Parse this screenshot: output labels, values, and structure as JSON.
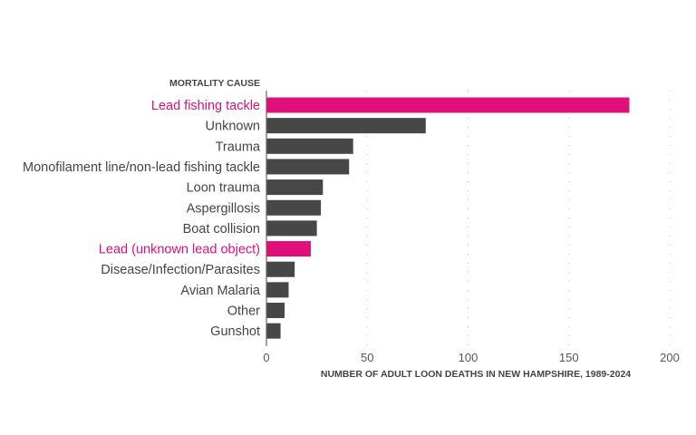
{
  "chart_data": {
    "type": "bar",
    "orientation": "horizontal",
    "ylabel": "MORTALITY CAUSE",
    "xlabel": "NUMBER OF ADULT LOON DEATHS IN NEW HAMPSHIRE, 1989-2024",
    "xlim": [
      0,
      200
    ],
    "xticks": [
      0,
      50,
      100,
      150,
      200
    ],
    "grid": "vertical dotted",
    "categories": [
      "Lead fishing tackle",
      "Unknown",
      "Trauma",
      "Monofilament line/non-lead fishing tackle",
      "Loon trauma",
      "Aspergillosis",
      "Boat collision",
      "Lead (unknown lead object)",
      "Disease/Infection/Parasites",
      "Avian Malaria",
      "Other",
      "Gunshot"
    ],
    "values": [
      180,
      79,
      43,
      41,
      28,
      27,
      25,
      22,
      14,
      11,
      9,
      7
    ],
    "highlighted": [
      true,
      false,
      false,
      false,
      false,
      false,
      false,
      true,
      false,
      false,
      false,
      false
    ],
    "colors": {
      "highlight": "#e0107a",
      "default": "#474747",
      "highlight_label": "#d8107a",
      "default_label": "#444444"
    }
  }
}
